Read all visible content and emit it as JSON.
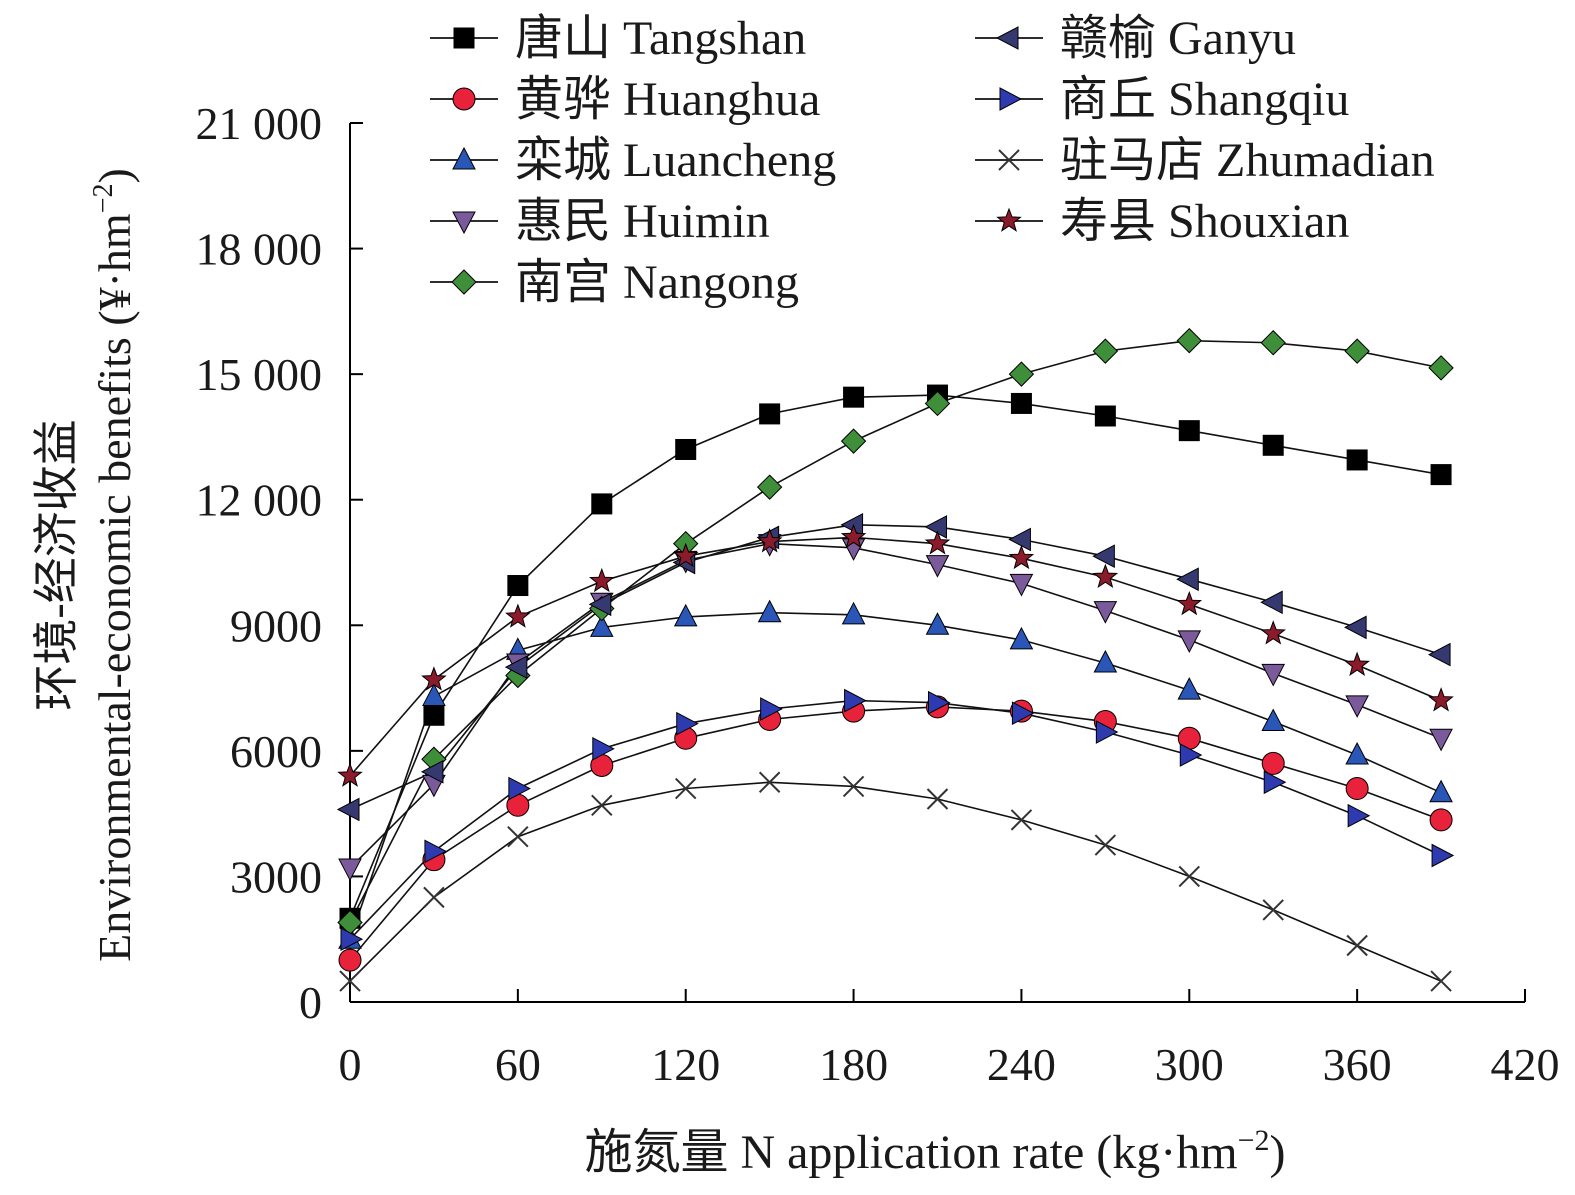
{
  "chart_data": {
    "type": "line",
    "xlabel": "施氮量 N application rate (kg·hm",
    "xlabel_sup": "−2",
    "xlabel_tail": ")",
    "ylabel": "环境-经济收益",
    "ylabel_en": "Environmental-economic benefits (¥·hm",
    "ylabel_sup": "−2",
    "ylabel_tail": ")",
    "xlim": [
      0,
      420
    ],
    "ylim": [
      0,
      21000
    ],
    "x_ticks": [
      0,
      60,
      120,
      180,
      240,
      300,
      360,
      420
    ],
    "x_tick_labels": [
      "0",
      "60",
      "120",
      "180",
      "240",
      "300",
      "360",
      "420"
    ],
    "y_ticks": [
      0,
      3000,
      6000,
      9000,
      12000,
      15000,
      18000,
      21000
    ],
    "y_tick_labels": [
      "0",
      "3000",
      "6000",
      "9000",
      "12 000",
      "15 000",
      "18 000",
      "21 000"
    ],
    "grid": false,
    "legend": "top",
    "x": [
      0,
      30,
      60,
      90,
      120,
      150,
      180,
      210,
      240,
      270,
      300,
      330,
      360,
      390
    ],
    "series": [
      {
        "name": "唐山 Tangshan",
        "marker": "square",
        "color": "#000000",
        "values": [
          2000,
          6850,
          9950,
          11900,
          13200,
          14050,
          14450,
          14500,
          14300,
          14000,
          13650,
          13300,
          12950,
          12600
        ]
      },
      {
        "name": "黄骅 Huanghua",
        "marker": "circle",
        "color": "#e8223a",
        "values": [
          1000,
          3400,
          4700,
          5650,
          6300,
          6750,
          6950,
          7050,
          6950,
          6700,
          6300,
          5700,
          5100,
          4350
        ]
      },
      {
        "name": "栾城 Luancheng",
        "marker": "triangle-up",
        "color": "#2a56b8",
        "values": [
          1500,
          7300,
          8400,
          8950,
          9200,
          9300,
          9250,
          9000,
          8650,
          8100,
          7450,
          6700,
          5900,
          5000
        ]
      },
      {
        "name": "惠民 Huimin",
        "marker": "triangle-down",
        "color": "#7a5a9a",
        "values": [
          3200,
          5200,
          8100,
          9550,
          10550,
          10950,
          10850,
          10450,
          10000,
          9350,
          8650,
          7850,
          7100,
          6300
        ]
      },
      {
        "name": "南宫 Nangong",
        "marker": "diamond",
        "color": "#3f8f3a",
        "values": [
          1900,
          5800,
          7800,
          9400,
          10950,
          12300,
          13400,
          14300,
          15000,
          15550,
          15800,
          15750,
          15550,
          15150
        ]
      },
      {
        "name": "赣榆 Ganyu",
        "marker": "triangle-left",
        "color": "#363870",
        "values": [
          4600,
          5500,
          8000,
          9500,
          10500,
          11100,
          11400,
          11350,
          11050,
          10650,
          10100,
          9550,
          8950,
          8300
        ]
      },
      {
        "name": "商丘 Shangqiu",
        "marker": "triangle-right",
        "color": "#2e3bb0",
        "values": [
          1500,
          3600,
          5100,
          6050,
          6650,
          7000,
          7200,
          7150,
          6900,
          6450,
          5900,
          5250,
          4450,
          3500
        ]
      },
      {
        "name": "驻马店 Zhumadian",
        "marker": "x",
        "color": "#555555",
        "values": [
          500,
          2500,
          3950,
          4700,
          5100,
          5250,
          5150,
          4850,
          4350,
          3750,
          3000,
          2200,
          1350,
          500
        ]
      },
      {
        "name": "寿县 Shouxian",
        "marker": "star",
        "color": "#8b1a2a",
        "values": [
          5400,
          7700,
          9200,
          10050,
          10650,
          11000,
          11100,
          10950,
          10600,
          10150,
          9500,
          8800,
          8050,
          7200
        ]
      }
    ]
  }
}
